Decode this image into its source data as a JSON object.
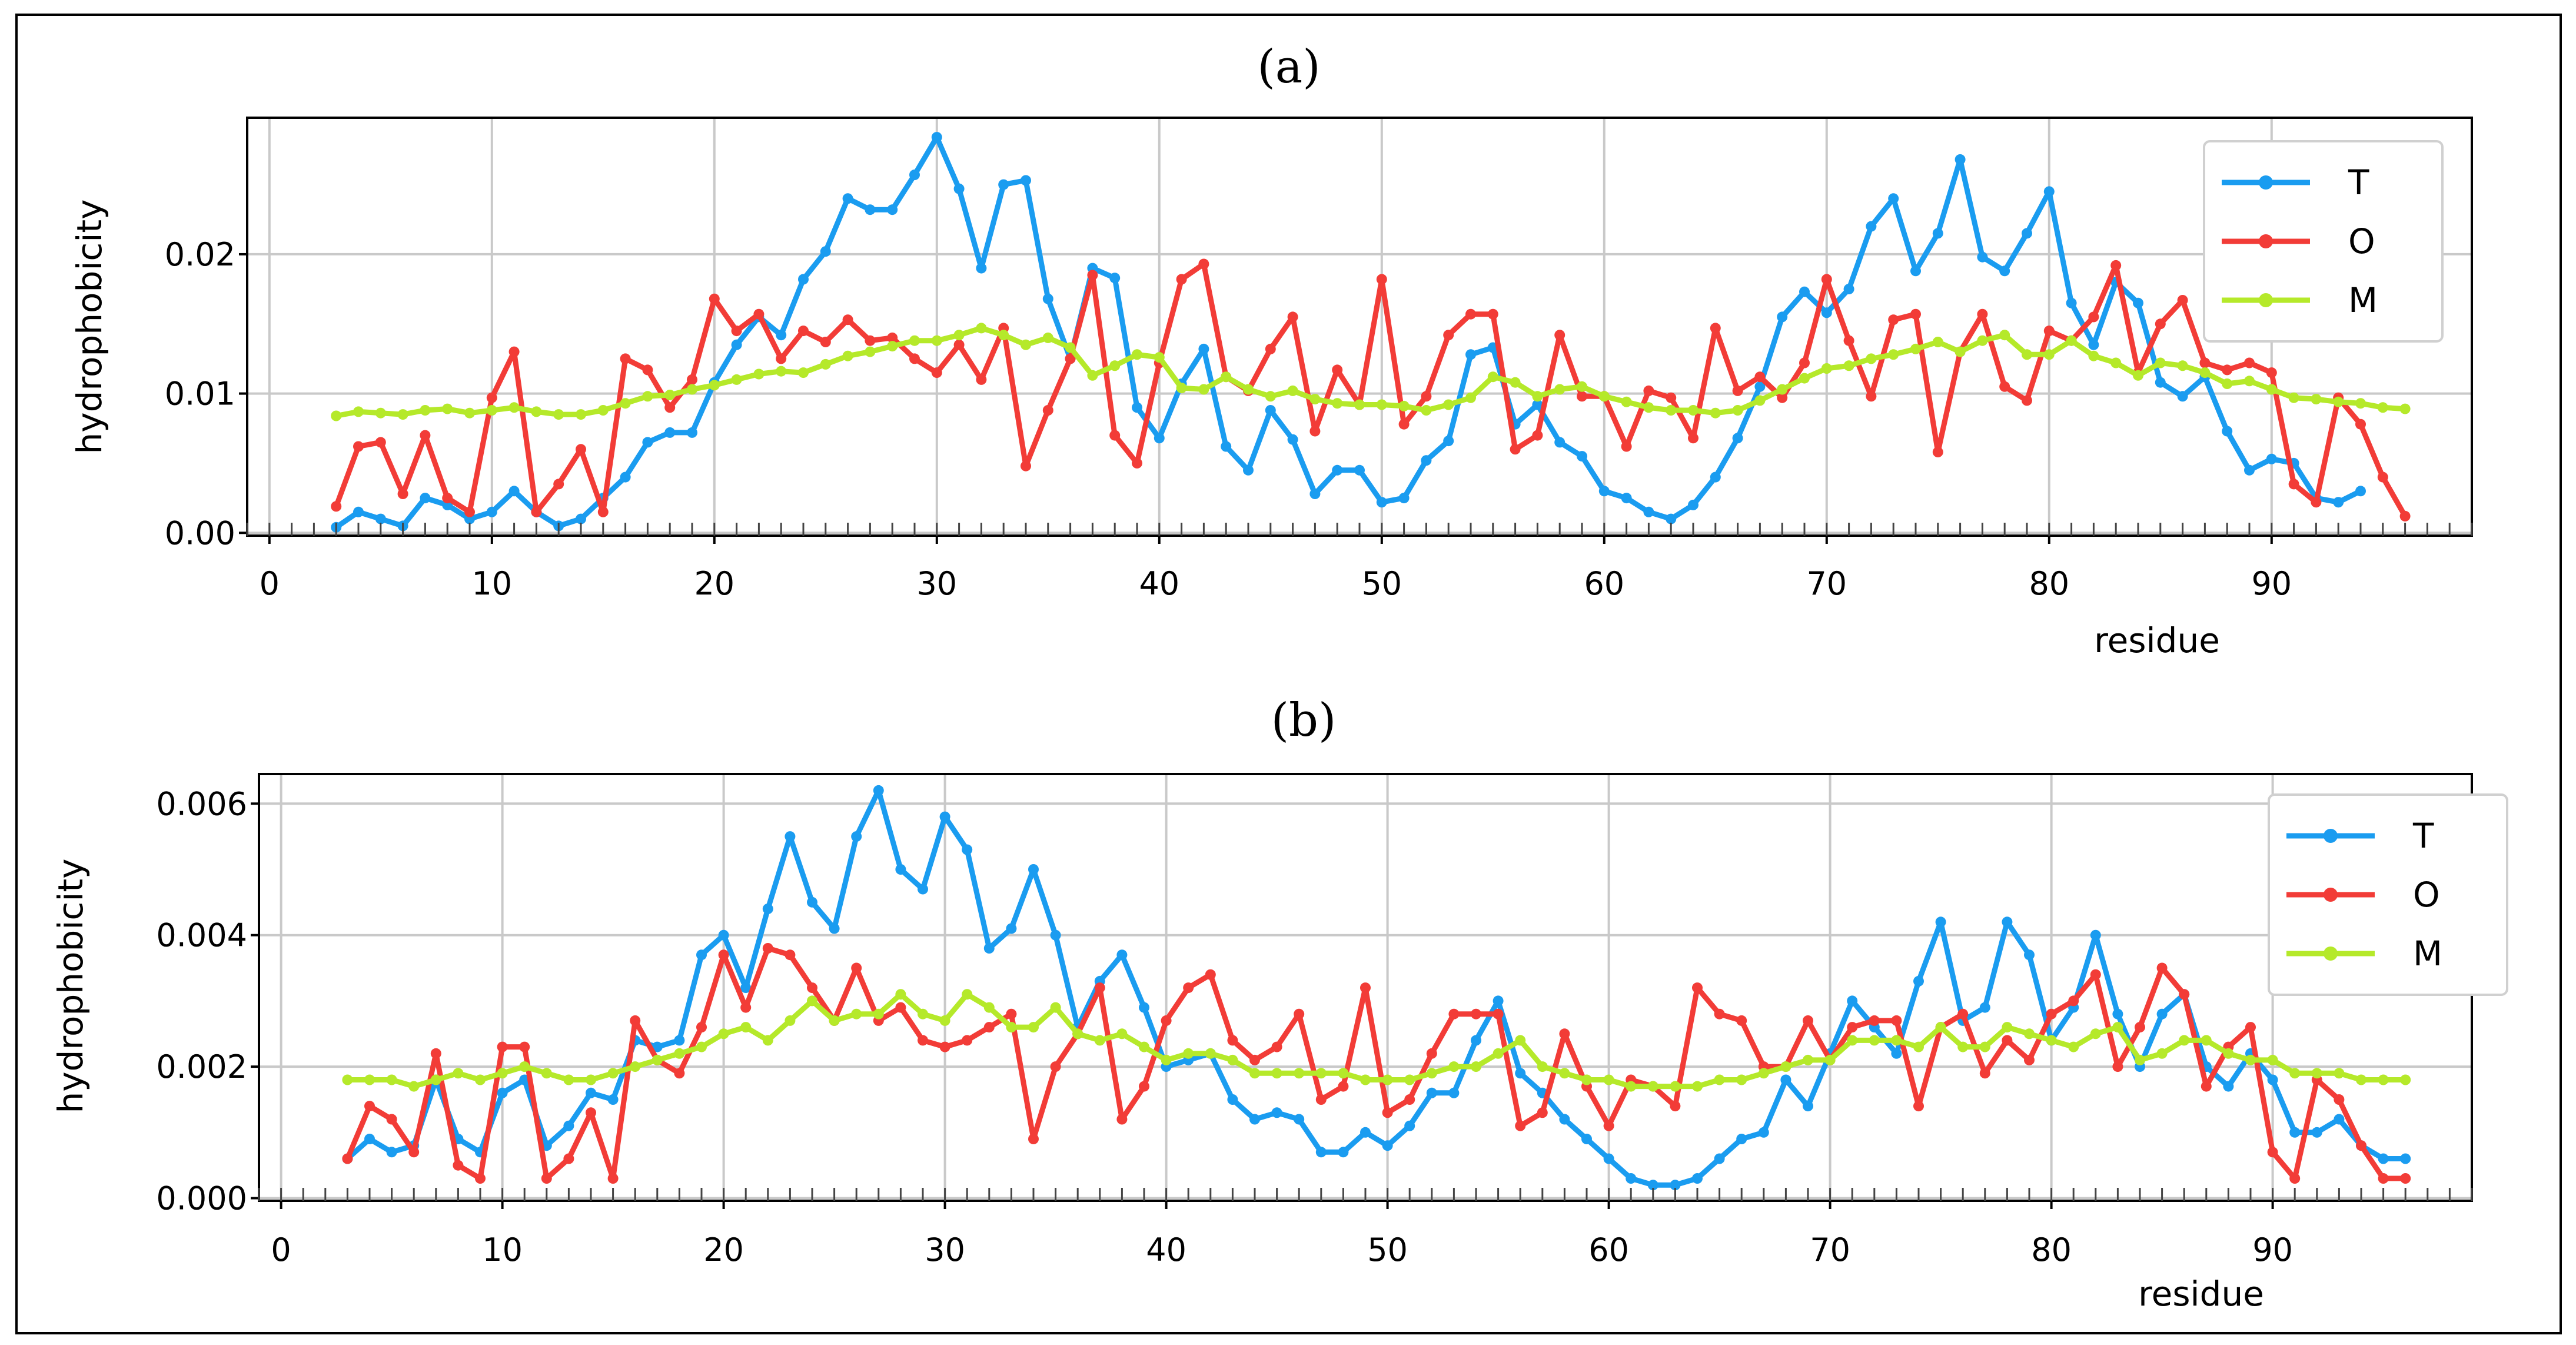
{
  "chart_data": [
    {
      "type": "line",
      "title": "(a)",
      "xlabel": "residue",
      "ylabel": "hydrophobicity",
      "xlim": [
        -1,
        99
      ],
      "ylim": [
        -0.0002,
        0.0298
      ],
      "xticks": [
        0,
        10,
        20,
        30,
        40,
        50,
        60,
        70,
        80,
        90
      ],
      "xtick_labels": [
        "0",
        "10",
        "20",
        "30",
        "40",
        "50",
        "60",
        "70",
        "80",
        "90"
      ],
      "yticks": [
        0.0,
        0.01,
        0.02
      ],
      "ytick_labels": [
        "0.00",
        "0.01",
        "0.02"
      ],
      "grid": true,
      "legend_position": "top-right",
      "series": [
        {
          "name": "T",
          "color": "#1a9cf0",
          "x_start": 3,
          "values": [
            0.0004,
            0.0015,
            0.001,
            0.0005,
            0.0025,
            0.002,
            0.001,
            0.0015,
            0.003,
            0.0015,
            0.0005,
            0.001,
            0.0025,
            0.004,
            0.0065,
            0.0072,
            0.0072,
            0.0108,
            0.0135,
            0.0155,
            0.0142,
            0.0182,
            0.0202,
            0.024,
            0.0232,
            0.0232,
            0.0257,
            0.0284,
            0.0247,
            0.019,
            0.025,
            0.0253,
            0.0168,
            0.0125,
            0.019,
            0.0183,
            0.009,
            0.0068,
            0.0107,
            0.0132,
            0.0062,
            0.0045,
            0.0088,
            0.0067,
            0.0028,
            0.0045,
            0.0045,
            0.0022,
            0.0025,
            0.0052,
            0.0066,
            0.0128,
            0.0133,
            0.0078,
            0.0092,
            0.0065,
            0.0055,
            0.003,
            0.0025,
            0.0015,
            0.001,
            0.002,
            0.004,
            0.0068,
            0.0105,
            0.0155,
            0.0173,
            0.0158,
            0.0175,
            0.022,
            0.024,
            0.0188,
            0.0215,
            0.0268,
            0.0198,
            0.0188,
            0.0215,
            0.0245,
            0.0165,
            0.0135,
            0.018,
            0.0165,
            0.0108,
            0.0098,
            0.0112,
            0.0073,
            0.0045,
            0.0053,
            0.005,
            0.0025,
            0.0022,
            0.003
          ]
        },
        {
          "name": "O",
          "color": "#f23c37",
          "x_start": 3,
          "values": [
            0.0019,
            0.0062,
            0.0065,
            0.0028,
            0.007,
            0.0025,
            0.0015,
            0.0097,
            0.013,
            0.0015,
            0.0035,
            0.006,
            0.0015,
            0.0125,
            0.0117,
            0.009,
            0.011,
            0.0168,
            0.0145,
            0.0157,
            0.0125,
            0.0145,
            0.0137,
            0.0153,
            0.0138,
            0.014,
            0.0125,
            0.0115,
            0.0135,
            0.011,
            0.0147,
            0.0048,
            0.0088,
            0.0125,
            0.0185,
            0.007,
            0.005,
            0.0122,
            0.0182,
            0.0193,
            0.0112,
            0.0102,
            0.0132,
            0.0155,
            0.0073,
            0.0117,
            0.0092,
            0.0182,
            0.0078,
            0.0098,
            0.0142,
            0.0157,
            0.0157,
            0.006,
            0.007,
            0.0142,
            0.0098,
            0.0098,
            0.0062,
            0.0102,
            0.0097,
            0.0068,
            0.0147,
            0.0102,
            0.0112,
            0.0097,
            0.0122,
            0.0182,
            0.0138,
            0.0098,
            0.0153,
            0.0157,
            0.0058,
            0.013,
            0.0157,
            0.0105,
            0.0095,
            0.0145,
            0.0138,
            0.0155,
            0.0192,
            0.0115,
            0.015,
            0.0167,
            0.0122,
            0.0117,
            0.0122,
            0.0115,
            0.0035,
            0.0022,
            0.0097,
            0.0078,
            0.004,
            0.0012
          ]
        },
        {
          "name": "M",
          "color": "#b5e92a",
          "x_start": 3,
          "values": [
            0.0084,
            0.0087,
            0.0086,
            0.0085,
            0.0088,
            0.0089,
            0.0086,
            0.0088,
            0.009,
            0.0087,
            0.0085,
            0.0085,
            0.0088,
            0.0093,
            0.0098,
            0.0099,
            0.0103,
            0.0106,
            0.011,
            0.0114,
            0.0116,
            0.0115,
            0.0121,
            0.0127,
            0.013,
            0.0134,
            0.0138,
            0.0138,
            0.0142,
            0.0147,
            0.0142,
            0.0135,
            0.014,
            0.0133,
            0.0113,
            0.012,
            0.0128,
            0.0126,
            0.0104,
            0.0103,
            0.0112,
            0.0103,
            0.0098,
            0.0102,
            0.0096,
            0.0093,
            0.0092,
            0.0092,
            0.0091,
            0.0088,
            0.0092,
            0.0097,
            0.0112,
            0.0108,
            0.0098,
            0.0103,
            0.0105,
            0.0098,
            0.0094,
            0.009,
            0.0088,
            0.0088,
            0.0086,
            0.0088,
            0.0095,
            0.0103,
            0.0111,
            0.0118,
            0.012,
            0.0125,
            0.0128,
            0.0132,
            0.0137,
            0.013,
            0.0138,
            0.0142,
            0.0128,
            0.0128,
            0.0138,
            0.0127,
            0.0122,
            0.0113,
            0.0122,
            0.012,
            0.0115,
            0.0107,
            0.0109,
            0.0103,
            0.0097,
            0.0096,
            0.0094,
            0.0093,
            0.009,
            0.0089
          ]
        }
      ]
    },
    {
      "type": "line",
      "title": "(b)",
      "xlabel": "residue",
      "ylabel": "hydrophobicity",
      "xlim": [
        -1,
        99
      ],
      "ylim": [
        -4e-05,
        0.00645
      ],
      "xticks": [
        0,
        10,
        20,
        30,
        40,
        50,
        60,
        70,
        80,
        90
      ],
      "xtick_labels": [
        "0",
        "10",
        "20",
        "30",
        "40",
        "50",
        "60",
        "70",
        "80",
        "90"
      ],
      "yticks": [
        0.0,
        0.002,
        0.004,
        0.006
      ],
      "ytick_labels": [
        "0.000",
        "0.002",
        "0.004",
        "0.006"
      ],
      "grid": true,
      "legend_position": "top-right",
      "series": [
        {
          "name": "T",
          "color": "#1a9cf0",
          "x_start": 3,
          "values": [
            0.0006,
            0.0009,
            0.0007,
            0.0008,
            0.0018,
            0.0009,
            0.0007,
            0.0016,
            0.0018,
            0.0008,
            0.0011,
            0.0016,
            0.0015,
            0.0024,
            0.0023,
            0.0024,
            0.0037,
            0.004,
            0.0032,
            0.0044,
            0.0055,
            0.0045,
            0.0041,
            0.0055,
            0.0062,
            0.005,
            0.0047,
            0.0058,
            0.0053,
            0.0038,
            0.0041,
            0.005,
            0.004,
            0.0026,
            0.0033,
            0.0037,
            0.0029,
            0.002,
            0.0021,
            0.0022,
            0.0015,
            0.0012,
            0.0013,
            0.0012,
            0.0007,
            0.0007,
            0.001,
            0.0008,
            0.0011,
            0.0016,
            0.0016,
            0.0024,
            0.003,
            0.0019,
            0.0016,
            0.0012,
            0.0009,
            0.0006,
            0.0003,
            0.0002,
            0.0002,
            0.0003,
            0.0006,
            0.0009,
            0.001,
            0.0018,
            0.0014,
            0.0022,
            0.003,
            0.0026,
            0.0022,
            0.0033,
            0.0042,
            0.0027,
            0.0029,
            0.0042,
            0.0037,
            0.0024,
            0.0029,
            0.004,
            0.0028,
            0.002,
            0.0028,
            0.0031,
            0.002,
            0.0017,
            0.0022,
            0.0018,
            0.001,
            0.001,
            0.0012,
            0.0008,
            0.0006,
            0.0006
          ]
        },
        {
          "name": "O",
          "color": "#f23c37",
          "x_start": 3,
          "values": [
            0.0006,
            0.0014,
            0.0012,
            0.0007,
            0.0022,
            0.0005,
            0.0003,
            0.0023,
            0.0023,
            0.0003,
            0.0006,
            0.0013,
            0.0003,
            0.0027,
            0.0021,
            0.0019,
            0.0026,
            0.0037,
            0.0029,
            0.0038,
            0.0037,
            0.0032,
            0.0027,
            0.0035,
            0.0027,
            0.0029,
            0.0024,
            0.0023,
            0.0024,
            0.0026,
            0.0028,
            0.0009,
            0.002,
            0.0025,
            0.0032,
            0.0012,
            0.0017,
            0.0027,
            0.0032,
            0.0034,
            0.0024,
            0.0021,
            0.0023,
            0.0028,
            0.0015,
            0.0017,
            0.0032,
            0.0013,
            0.0015,
            0.0022,
            0.0028,
            0.0028,
            0.0028,
            0.0011,
            0.0013,
            0.0025,
            0.0017,
            0.0011,
            0.0018,
            0.0017,
            0.0014,
            0.0032,
            0.0028,
            0.0027,
            0.002,
            0.002,
            0.0027,
            0.0021,
            0.0026,
            0.0027,
            0.0027,
            0.0014,
            0.0026,
            0.0028,
            0.0019,
            0.0024,
            0.0021,
            0.0028,
            0.003,
            0.0034,
            0.002,
            0.0026,
            0.0035,
            0.0031,
            0.0017,
            0.0023,
            0.0026,
            0.0007,
            0.0003,
            0.0018,
            0.0015,
            0.0008,
            0.0003,
            0.0003
          ]
        },
        {
          "name": "M",
          "color": "#b5e92a",
          "x_start": 3,
          "values": [
            0.0018,
            0.0018,
            0.0018,
            0.0017,
            0.0018,
            0.0019,
            0.0018,
            0.0019,
            0.002,
            0.0019,
            0.0018,
            0.0018,
            0.0019,
            0.002,
            0.0021,
            0.0022,
            0.0023,
            0.0025,
            0.0026,
            0.0024,
            0.0027,
            0.003,
            0.0027,
            0.0028,
            0.0028,
            0.0031,
            0.0028,
            0.0027,
            0.0031,
            0.0029,
            0.0026,
            0.0026,
            0.0029,
            0.0025,
            0.0024,
            0.0025,
            0.0023,
            0.0021,
            0.0022,
            0.0022,
            0.0021,
            0.0019,
            0.0019,
            0.0019,
            0.0019,
            0.0019,
            0.0018,
            0.0018,
            0.0018,
            0.0019,
            0.002,
            0.002,
            0.0022,
            0.0024,
            0.002,
            0.0019,
            0.0018,
            0.0018,
            0.0017,
            0.0017,
            0.0017,
            0.0017,
            0.0018,
            0.0018,
            0.0019,
            0.002,
            0.0021,
            0.0021,
            0.0024,
            0.0024,
            0.0024,
            0.0023,
            0.0026,
            0.0023,
            0.0023,
            0.0026,
            0.0025,
            0.0024,
            0.0023,
            0.0025,
            0.0026,
            0.0021,
            0.0022,
            0.0024,
            0.0024,
            0.0022,
            0.0021,
            0.0021,
            0.0019,
            0.0019,
            0.0019,
            0.0018,
            0.0018,
            0.0018
          ]
        }
      ]
    }
  ]
}
